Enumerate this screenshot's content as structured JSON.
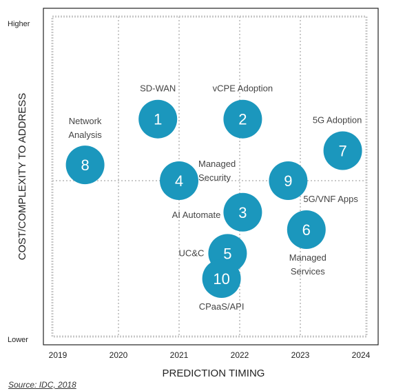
{
  "colors": {
    "bubble": "#1b97bd",
    "bubble_text": "#ffffff",
    "label_text": "#444444",
    "axis_text": "#222222",
    "frame": "#222222",
    "grid": "#c8c8c8"
  },
  "chart_data": {
    "type": "scatter",
    "xlabel": "PREDICTION TIMING",
    "ylabel": "COST/COMPLEXITY TO ADDRESS",
    "x_ticks": [
      "2019",
      "2020",
      "2021",
      "2022",
      "2023",
      "2024"
    ],
    "x_range": [
      2019,
      2024
    ],
    "y_range": [
      0,
      10
    ],
    "y_tick_labels": {
      "top": "Higher",
      "bottom": "Lower"
    },
    "grid": true,
    "points": [
      {
        "id": "1",
        "label": "SD-WAN",
        "x": 2020.65,
        "y": 6.95
      },
      {
        "id": "2",
        "label": "vCPE Adoption",
        "x": 2022.05,
        "y": 6.95
      },
      {
        "id": "3",
        "label": "AI Automate",
        "x": 2022.05,
        "y": 4.0
      },
      {
        "id": "4",
        "label": "Managed Security",
        "x": 2021.0,
        "y": 5.0
      },
      {
        "id": "5",
        "label": "UC&C",
        "x": 2021.8,
        "y": 2.7
      },
      {
        "id": "6",
        "label": "Managed Services",
        "x": 2023.1,
        "y": 3.45
      },
      {
        "id": "7",
        "label": "5G Adoption",
        "x": 2023.7,
        "y": 5.95
      },
      {
        "id": "8",
        "label": "Network Analysis",
        "x": 2019.45,
        "y": 5.5
      },
      {
        "id": "9",
        "label": "5G/VNF Apps",
        "x": 2022.8,
        "y": 5.0
      },
      {
        "id": "10",
        "label": "CPaaS/API",
        "x": 2021.7,
        "y": 1.9
      }
    ]
  },
  "source": {
    "prefix": "Source",
    "text": ": IDC, 2018"
  }
}
